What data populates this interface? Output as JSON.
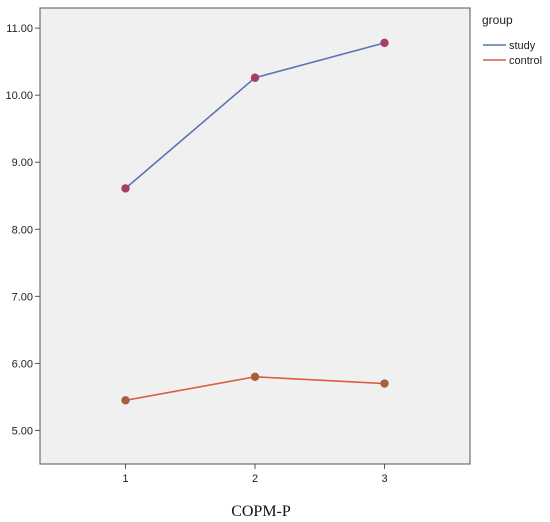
{
  "chart_data": {
    "type": "line",
    "x": [
      1,
      2,
      3
    ],
    "x_tick_labels": [
      "1",
      "2",
      "3"
    ],
    "series": [
      {
        "name": "study",
        "values": [
          8.61,
          10.26,
          10.78
        ],
        "color": "#5b73b4",
        "marker_color": "#a43d6a"
      },
      {
        "name": "control",
        "values": [
          5.45,
          5.8,
          5.7
        ],
        "color": "#dd5b47",
        "marker_color": "#a5603a"
      }
    ],
    "y_tick_labels": [
      "5.00",
      "6.00",
      "7.00",
      "8.00",
      "9.00",
      "10.00",
      "11.00"
    ],
    "ylim": [
      4.5,
      11.3
    ],
    "xlim": [
      0.34,
      3.66
    ],
    "xlabel": "COPM-P",
    "ylabel": "",
    "title": "",
    "legend": {
      "title": "group",
      "position": "right"
    },
    "plot_background": "#f0f0f0",
    "grid": false
  }
}
